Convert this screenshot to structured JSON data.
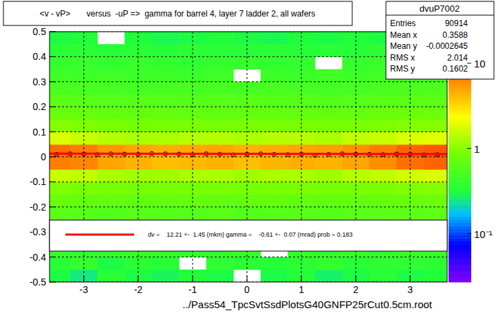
{
  "chart_data": {
    "type": "heatmap",
    "title": "<v - vP>       versus  -uP =>  gamma for barrel 4, layer 7 ladder 2, all wafers",
    "x_label": "../Pass54_TpcSvtSsdPlotsG40GNFP25rCut0.5cm.root",
    "xlim": [
      -3.63,
      3.68
    ],
    "ylim": [
      -0.5,
      0.5
    ],
    "xticks": [
      -3,
      -2,
      -1,
      0,
      1,
      2,
      3
    ],
    "yticks": [
      -0.5,
      -0.4,
      -0.3,
      -0.2,
      -0.1,
      0,
      0.1,
      0.2,
      0.3,
      0.4,
      0.5
    ],
    "grid": true,
    "heatmap": {
      "x_edges": [
        -3.63,
        -3.25,
        -2.75,
        -2.25,
        -1.75,
        -1.25,
        -0.75,
        -0.25,
        0.25,
        0.75,
        1.25,
        1.75,
        2.25,
        2.75,
        3.25,
        3.68
      ],
      "y_edges": [
        -0.5,
        -0.45,
        -0.4,
        -0.35,
        -0.3,
        -0.25,
        -0.2,
        -0.15,
        -0.1,
        -0.05,
        0,
        0.05,
        0.1,
        0.15,
        0.2,
        0.25,
        0.3,
        0.35,
        0.4,
        0.45,
        0.5
      ],
      "cells": [
        [
          0.3,
          0.25,
          0.35,
          0.3,
          0.28,
          0.32,
          0.3,
          0,
          0.3,
          0.33,
          0.27,
          0.3,
          0.35,
          0.3,
          0.32
        ],
        [
          0.35,
          0.4,
          0.3,
          0.36,
          0.34,
          0,
          0.38,
          0.35,
          0.33,
          0.36,
          0.4,
          0.34,
          0.37,
          0.38,
          0.36
        ],
        [
          0.42,
          0.38,
          0.4,
          0.44,
          0.41,
          0.39,
          0.4,
          0.43,
          0,
          0.41,
          0.38,
          0.42,
          0.4,
          0.45,
          0.43
        ],
        [
          0.46,
          0.44,
          0.47,
          0.45,
          0.43,
          0.46,
          0.48,
          0.45,
          0.44,
          0.47,
          0.45,
          0,
          0.46,
          0.48,
          0.5
        ],
        [
          0.52,
          0.5,
          0.48,
          0.51,
          0.5,
          0.53,
          0.49,
          0.5,
          0.52,
          0.51,
          0.5,
          0.49,
          0.53,
          0.55,
          0.54
        ],
        [
          0.62,
          0.6,
          0.58,
          0.61,
          0.59,
          0.6,
          0.62,
          0.58,
          0.6,
          0.61,
          0.59,
          0.62,
          0.63,
          0.65,
          0.66
        ],
        [
          0.75,
          0.72,
          0.7,
          0.68,
          0.7,
          0.71,
          0.69,
          0.7,
          0.72,
          0.7,
          0.68,
          0.71,
          0.73,
          0.76,
          0.78
        ],
        [
          0.95,
          0.92,
          0.9,
          0.88,
          0.9,
          0.89,
          0.91,
          0.88,
          0.9,
          0.92,
          0.89,
          0.91,
          0.93,
          0.97,
          1.0
        ],
        [
          1.6,
          1.5,
          1.3,
          1.2,
          1.2,
          1.3,
          1.3,
          1.2,
          1.3,
          1.3,
          1.2,
          1.4,
          1.5,
          1.7,
          1.8
        ],
        [
          7,
          6.5,
          5,
          4.5,
          4,
          4.2,
          4.5,
          4,
          4.3,
          4.6,
          4.4,
          5,
          6,
          8,
          9
        ],
        [
          8,
          7,
          5.5,
          5,
          4.6,
          4.8,
          5,
          4.5,
          4.7,
          5,
          5.2,
          5.8,
          7,
          9,
          10
        ],
        [
          1.8,
          1.6,
          1.4,
          1.3,
          1.3,
          1.4,
          1.4,
          1.3,
          1.4,
          1.4,
          1.3,
          1.5,
          1.6,
          1.8,
          1.9
        ],
        [
          1.0,
          0.95,
          0.9,
          0.89,
          0.9,
          0.91,
          0.88,
          0.9,
          0.92,
          0.9,
          0.89,
          0.92,
          0.94,
          0.98,
          1.0
        ],
        [
          0.76,
          0.73,
          0.7,
          0.69,
          0.71,
          0.7,
          0.68,
          0.7,
          0.71,
          0.7,
          0.69,
          0.72,
          0.74,
          0.77,
          0.78
        ],
        [
          0.63,
          0.61,
          0.6,
          0.59,
          0.6,
          0.58,
          0.6,
          0.61,
          0.59,
          0.6,
          0.58,
          0.6,
          0.62,
          0.64,
          0.65
        ],
        [
          0.53,
          0.51,
          0.5,
          0.49,
          0.5,
          0.52,
          0.5,
          0.49,
          0.51,
          0.5,
          0.48,
          0.5,
          0.52,
          0.54,
          0.55
        ],
        [
          0.46,
          0.45,
          0.47,
          0.44,
          0.45,
          0.43,
          0.46,
          0,
          0.45,
          0.44,
          0.46,
          0.45,
          0.47,
          0.48,
          0.47
        ],
        [
          0.4,
          0.42,
          0.39,
          0.41,
          0.4,
          0.38,
          0.4,
          0.41,
          0.39,
          0.4,
          0,
          0.41,
          0.42,
          0.43,
          0.41
        ],
        [
          0.35,
          0.36,
          0.34,
          0.35,
          0.33,
          0.36,
          0.35,
          0.34,
          0.36,
          0.33,
          0.35,
          0.34,
          0.37,
          0.36,
          0.38
        ],
        [
          0.3,
          0.32,
          0,
          0.31,
          0.29,
          0.3,
          0.32,
          0.3,
          0.29,
          0.31,
          0.3,
          0.32,
          0.3,
          0.33,
          0.31
        ]
      ]
    },
    "colorbar": {
      "lim": [
        0.027,
        23.5
      ],
      "log": true,
      "ticks": [
        {
          "value": 0.1,
          "label": "10⁻¹"
        },
        1,
        10
      ]
    },
    "series": [
      {
        "type": "scatter",
        "color": "#000000",
        "marker": "circle",
        "x": [
          -3.5,
          -3.25,
          -3,
          -2.75,
          -2.5,
          -2.25,
          -2,
          -1.75,
          -1.5,
          -1.25,
          -1,
          -0.75,
          -0.5,
          -0.25,
          0,
          0.25,
          0.5,
          0.75,
          1,
          1.25,
          1.5,
          1.75,
          2,
          2.25,
          2.5,
          2.75,
          3,
          3.25,
          3.5
        ],
        "values": [
          0.01,
          0.012,
          0.011,
          0.009,
          0.012,
          0.011,
          0.01,
          0.013,
          0.012,
          0.011,
          0.009,
          0.012,
          0.01,
          0.008,
          0.011,
          0.012,
          0.01,
          0.009,
          0.011,
          0.006,
          0.01,
          0.012,
          0.011,
          0.01,
          0.009,
          0.011,
          0.01,
          0.008,
          0.009
        ],
        "errors": [
          0.004,
          0.004,
          0.004,
          0.004,
          0.004,
          0.004,
          0.004,
          0.004,
          0.004,
          0.004,
          0.004,
          0.004,
          0.004,
          0.004,
          0.004,
          0.004,
          0.004,
          0.004,
          0.004,
          0.004,
          0.004,
          0.004,
          0.004,
          0.004,
          0.004,
          0.004,
          0.004,
          0.004,
          0.004
        ]
      },
      {
        "type": "line",
        "color": "#ff0000",
        "x": [
          -3.63,
          3.68
        ],
        "values": [
          0.013,
          0.011
        ]
      }
    ],
    "stats": {
      "title": "dvuP7002",
      "rows": [
        {
          "label": "Entries",
          "value": 90914
        },
        {
          "label": "Mean x",
          "value": 0.3588
        },
        {
          "label": "Mean y",
          "value": -0.0002645
        },
        {
          "label": "RMS x",
          "value": 2.014
        },
        {
          "label": "RMS y",
          "value": 0.1602
        }
      ]
    },
    "annotations": [
      "dv =    12.21 +-  1.45 (mkm) gamma =    -0.61 +-  0.07 (mrad) prob = 0.183"
    ]
  }
}
